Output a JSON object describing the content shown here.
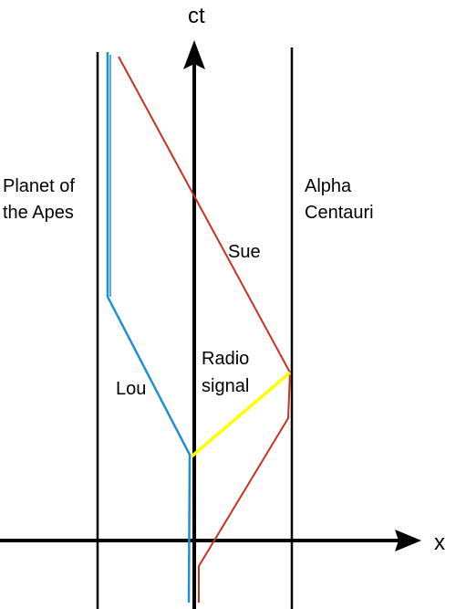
{
  "axes": {
    "time_label": "ct",
    "space_label": "x"
  },
  "regions": {
    "left": [
      "Planet of",
      "the Apes"
    ],
    "right": [
      "Alpha",
      "Centauri"
    ]
  },
  "worldlines": {
    "lou": "Lou",
    "sue": "Sue",
    "signal": [
      "Radio",
      "signal"
    ]
  },
  "colors": {
    "axes": "#000000",
    "boundaries": "#000000",
    "lou": "#1e90d6",
    "sue": "#c8321e",
    "signal": "#ffff00"
  }
}
